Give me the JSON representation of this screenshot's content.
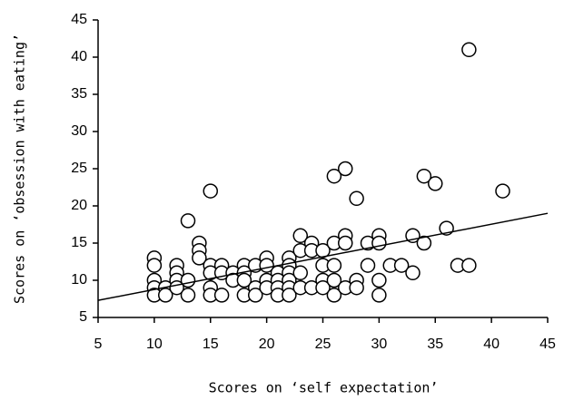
{
  "chart_data": {
    "type": "scatter",
    "x_label": "Scores on ‘self expectation’",
    "y_label": "Scores on ‘obsession with eating’",
    "xlim": [
      5,
      45
    ],
    "ylim": [
      5,
      45
    ],
    "xticks": [
      5,
      10,
      15,
      20,
      25,
      30,
      35,
      40,
      45
    ],
    "yticks": [
      5,
      10,
      15,
      20,
      25,
      30,
      35,
      40,
      45
    ],
    "series": [
      {
        "color": "#000000",
        "x": [
          10,
          10,
          10,
          10,
          10,
          11,
          11,
          12,
          12,
          12,
          12,
          13,
          13,
          13,
          14,
          14,
          14,
          15,
          15,
          15,
          15,
          15,
          16,
          16,
          16,
          17,
          17,
          18,
          18,
          18,
          18,
          19,
          19,
          19,
          20,
          20,
          20,
          20,
          21,
          21,
          21,
          21,
          22,
          22,
          22,
          22,
          22,
          22,
          23,
          23,
          23,
          23,
          24,
          24,
          24,
          25,
          25,
          25,
          25,
          26,
          26,
          26,
          26,
          26,
          27,
          27,
          27,
          27,
          28,
          28,
          28,
          29,
          29,
          30,
          30,
          30,
          30,
          31,
          32,
          33,
          33,
          34,
          34,
          35,
          36,
          37,
          38,
          38,
          41
        ],
        "y": [
          13,
          12,
          10,
          9,
          8,
          9,
          8,
          12,
          11,
          10,
          9,
          18,
          10,
          8,
          15,
          14,
          13,
          22,
          12,
          11,
          9,
          8,
          12,
          11,
          8,
          11,
          10,
          12,
          11,
          10,
          8,
          12,
          9,
          8,
          13,
          12,
          10,
          9,
          11,
          10,
          9,
          8,
          13,
          12,
          11,
          10,
          9,
          8,
          16,
          14,
          11,
          9,
          15,
          14,
          9,
          14,
          12,
          10,
          9,
          24,
          15,
          12,
          10,
          8,
          25,
          16,
          15,
          9,
          21,
          10,
          9,
          15,
          12,
          16,
          15,
          10,
          8,
          12,
          12,
          16,
          11,
          24,
          15,
          23,
          17,
          12,
          41,
          12,
          22
        ]
      }
    ],
    "trendline": {
      "x": [
        5,
        45
      ],
      "y": [
        7.3,
        19
      ]
    }
  }
}
